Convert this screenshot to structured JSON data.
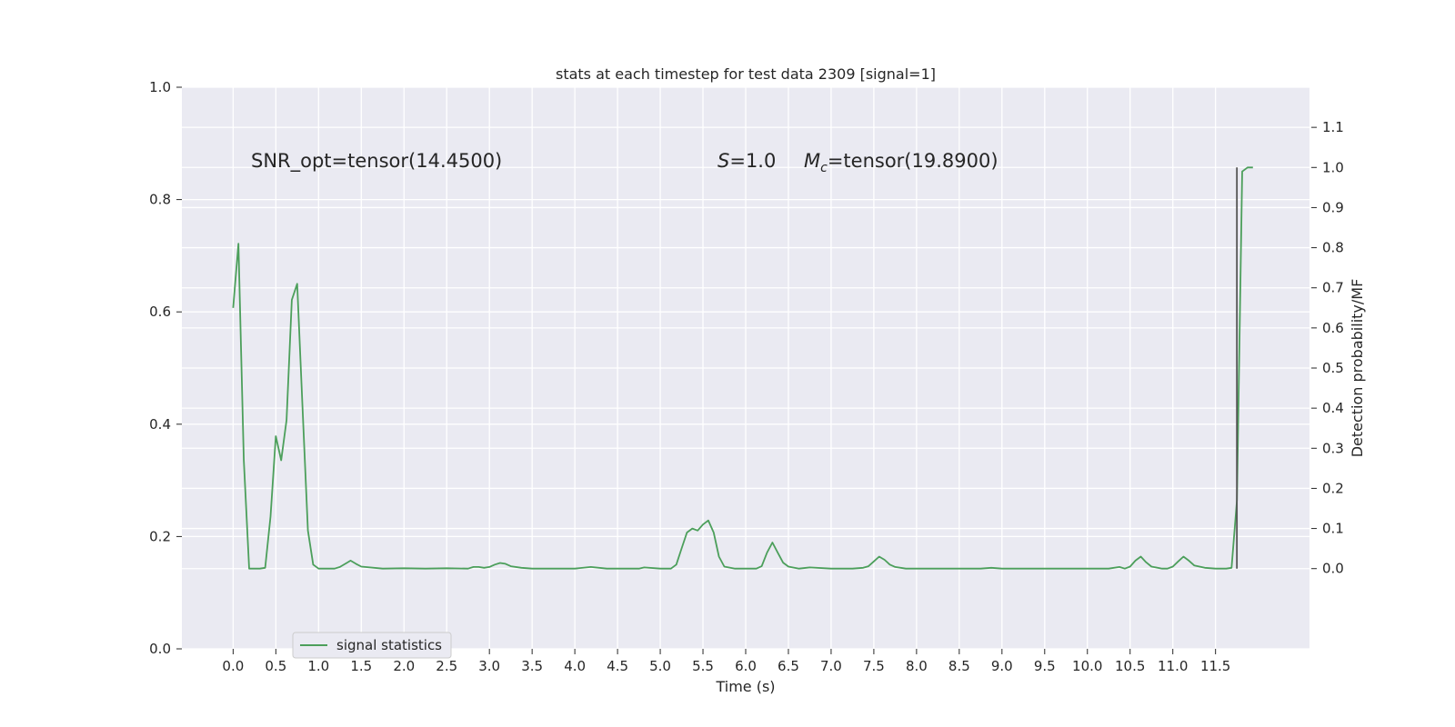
{
  "chart_data": {
    "type": "line",
    "title": "stats at each timestep for test data 2309 [signal=1]",
    "xlabel": "Time (s)",
    "ylabel_left": "",
    "ylabel_right": "Detection probability/MF",
    "xlim": [
      -0.6,
      12.6
    ],
    "ylim_left": [
      0.0,
      1.0
    ],
    "ylim_right": [
      -0.2,
      1.2
    ],
    "x_ticks": [
      0.0,
      0.5,
      1.0,
      1.5,
      2.0,
      2.5,
      3.0,
      3.5,
      4.0,
      4.5,
      5.0,
      5.5,
      6.0,
      6.5,
      7.0,
      7.5,
      8.0,
      8.5,
      9.0,
      9.5,
      10.0,
      10.5,
      11.0,
      11.5
    ],
    "x_tick_labels": [
      "0.0",
      "0.5",
      "1.0",
      "1.5",
      "2.0",
      "2.5",
      "3.0",
      "3.5",
      "4.0",
      "4.5",
      "5.0",
      "5.5",
      "6.0",
      "6.5",
      "7.0",
      "7.5",
      "8.0",
      "8.5",
      "9.0",
      "9.5",
      "10.0",
      "10.5",
      "11.0",
      "11.5"
    ],
    "y_left_ticks": [
      0.0,
      0.2,
      0.4,
      0.6,
      0.8,
      1.0
    ],
    "y_left_tick_labels": [
      "0.0",
      "0.2",
      "0.4",
      "0.6",
      "0.8",
      "1.0"
    ],
    "y_right_ticks": [
      0.0,
      0.1,
      0.2,
      0.3,
      0.4,
      0.5,
      0.6,
      0.7,
      0.8,
      0.9,
      1.0,
      1.1
    ],
    "y_right_tick_labels": [
      "0.0",
      "0.1",
      "0.2",
      "0.3",
      "0.4",
      "0.5",
      "0.6",
      "0.7",
      "0.8",
      "0.9",
      "1.0",
      "1.1"
    ],
    "grid": true,
    "legend_position": "lower-left",
    "annotations": {
      "snr": "SNR_opt=tensor(14.4500)",
      "s_symbol": "S",
      "s_value": "=1.0",
      "mc_symbol": "M",
      "mc_subscript": "c",
      "mc_value": "=tensor(19.8900)"
    },
    "vline": {
      "x": 11.75,
      "y_range_right": [
        0.0,
        1.0
      ],
      "color": "#555555"
    },
    "series": [
      {
        "name": "signal statistics",
        "axis": "right",
        "color": "#4c9f5b",
        "x": [
          0.0,
          0.0625,
          0.125,
          0.1875,
          0.25,
          0.3125,
          0.375,
          0.4375,
          0.5,
          0.5625,
          0.625,
          0.6875,
          0.75,
          0.8125,
          0.875,
          0.9375,
          1.0,
          1.0625,
          1.125,
          1.1875,
          1.25,
          1.3125,
          1.375,
          1.4375,
          1.5,
          1.75,
          2.0,
          2.25,
          2.5,
          2.75,
          2.8125,
          2.875,
          2.9375,
          3.0,
          3.0625,
          3.125,
          3.1875,
          3.25,
          3.375,
          3.5,
          3.75,
          4.0,
          4.1875,
          4.375,
          4.5,
          4.75,
          4.8125,
          5.0,
          5.125,
          5.1875,
          5.25,
          5.3125,
          5.375,
          5.4375,
          5.5,
          5.5625,
          5.625,
          5.6875,
          5.75,
          5.875,
          6.0,
          6.125,
          6.1875,
          6.25,
          6.3125,
          6.375,
          6.4375,
          6.5,
          6.625,
          6.75,
          7.0,
          7.25,
          7.375,
          7.4375,
          7.5,
          7.5625,
          7.625,
          7.6875,
          7.75,
          7.875,
          8.0,
          8.5,
          8.75,
          8.875,
          9.0,
          9.5,
          10.0,
          10.25,
          10.375,
          10.4375,
          10.5,
          10.5625,
          10.625,
          10.6875,
          10.75,
          10.875,
          10.9375,
          11.0,
          11.0625,
          11.125,
          11.1875,
          11.25,
          11.375,
          11.5,
          11.625,
          11.6875,
          11.75,
          11.8125,
          11.875,
          11.9375
        ],
        "y": [
          0.65,
          0.81,
          0.27,
          0.0,
          0.0,
          0.0,
          0.002,
          0.13,
          0.33,
          0.27,
          0.37,
          0.67,
          0.71,
          0.4,
          0.095,
          0.01,
          0.0,
          0.0,
          0.0,
          0.0,
          0.004,
          0.012,
          0.02,
          0.012,
          0.005,
          0.0,
          0.001,
          0.0,
          0.001,
          0.0,
          0.004,
          0.004,
          0.002,
          0.004,
          0.01,
          0.014,
          0.012,
          0.006,
          0.002,
          0.0,
          0.0,
          0.0,
          0.004,
          0.0,
          0.0,
          0.0,
          0.003,
          0.0,
          0.0,
          0.01,
          0.05,
          0.09,
          0.1,
          0.095,
          0.11,
          0.12,
          0.09,
          0.03,
          0.005,
          0.0,
          0.0,
          0.0,
          0.006,
          0.04,
          0.065,
          0.04,
          0.015,
          0.005,
          0.0,
          0.003,
          0.0,
          0.0,
          0.002,
          0.006,
          0.018,
          0.03,
          0.022,
          0.01,
          0.004,
          0.0,
          0.0,
          0.0,
          0.0,
          0.002,
          0.0,
          0.0,
          0.0,
          0.0,
          0.004,
          0.0,
          0.005,
          0.02,
          0.03,
          0.016,
          0.005,
          0.0,
          0.0,
          0.005,
          0.018,
          0.03,
          0.02,
          0.008,
          0.002,
          0.0,
          0.0,
          0.002,
          0.17,
          0.99,
          1.0,
          1.0
        ]
      }
    ]
  }
}
